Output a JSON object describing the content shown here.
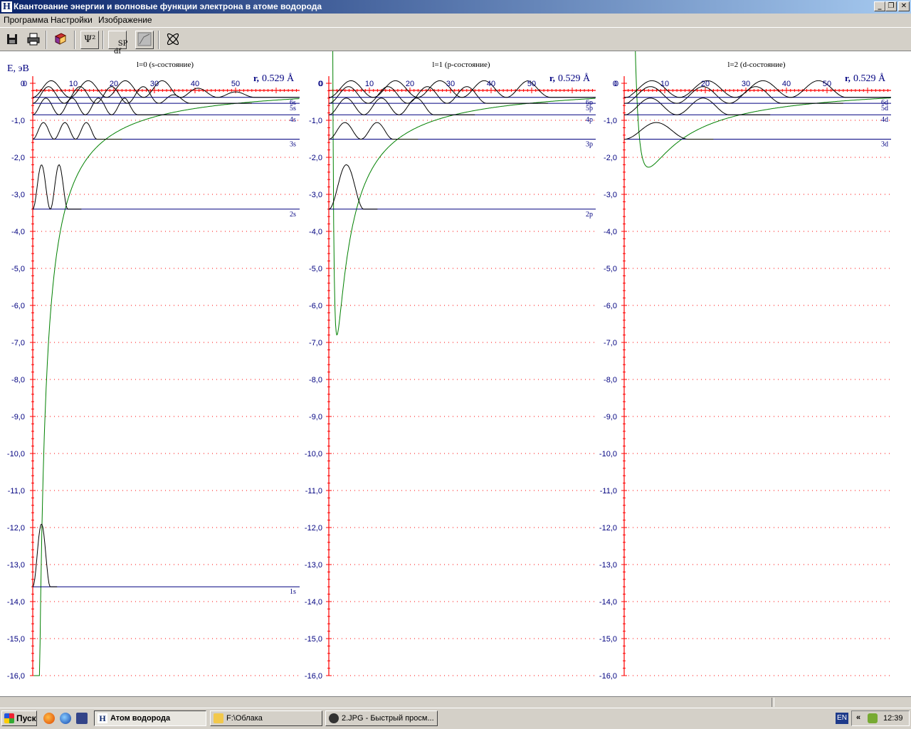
{
  "window": {
    "icon_letter": "H",
    "title": "Квантование энергии и волновые функции электрона в атоме водорода",
    "buttons": {
      "minimize": "_",
      "restore": "❐",
      "close": "✕"
    }
  },
  "menu": [
    "Программа",
    "Настройки",
    "Изображение"
  ],
  "toolbar": {
    "psi_label": "Ψ²",
    "spdf_label": "SP\ndf",
    "icons": [
      "save-icon",
      "print-icon",
      "book-icon",
      "psi-squared-icon",
      "spdf-icon",
      "chart-frame-icon",
      "orbital-icon"
    ]
  },
  "plot": {
    "y_axis_title": "E, эВ",
    "y_ticks": [
      "0",
      "-1,0",
      "-2,0",
      "-3,0",
      "-4,0",
      "-5,0",
      "-6,0",
      "-7,0",
      "-8,0",
      "-9,0",
      "-10,0",
      "-11,0",
      "-12,0",
      "-13,0",
      "-14,0",
      "-15,0",
      "-16,0"
    ],
    "x_ticks": [
      "10",
      "20",
      "30",
      "40",
      "50"
    ],
    "x_unit_prefix": "r,",
    "x_unit_value": "0.529 Å",
    "panels": [
      {
        "title": "l=0 (s-состояние)",
        "levels": [
          "1s",
          "2s",
          "3s",
          "4s",
          "5s",
          "6s"
        ]
      },
      {
        "title": "l=1 (p-состояние)",
        "levels": [
          "2p",
          "3p",
          "4p",
          "5p",
          "6p"
        ]
      },
      {
        "title": "l=2 (d-состояние)",
        "levels": [
          "3d",
          "4d",
          "5d",
          "6d"
        ]
      }
    ],
    "colors": {
      "axis": "#ff0000",
      "grid": "#ff0000",
      "label": "#000080",
      "potential": "#008000",
      "wave": "#000000",
      "level": "#000080"
    }
  },
  "chart_data": [
    {
      "type": "line",
      "title": "l=0 (s-состояние)",
      "ylabel": "E, эВ",
      "xlabel": "r, 0.529 Å",
      "xlim": [
        0,
        65
      ],
      "ylim": [
        -16,
        0
      ],
      "energy_levels": [
        {
          "name": "1s",
          "E": -13.6
        },
        {
          "name": "2s",
          "E": -3.4
        },
        {
          "name": "3s",
          "E": -1.51
        },
        {
          "name": "4s",
          "E": -0.85
        },
        {
          "name": "5s",
          "E": -0.54
        },
        {
          "name": "6s",
          "E": -0.38
        }
      ],
      "grid": true
    },
    {
      "type": "line",
      "title": "l=1 (p-состояние)",
      "ylabel": "E, эВ",
      "xlabel": "r, 0.529 Å",
      "xlim": [
        0,
        65
      ],
      "ylim": [
        -16,
        0
      ],
      "energy_levels": [
        {
          "name": "2p",
          "E": -3.4
        },
        {
          "name": "3p",
          "E": -1.51
        },
        {
          "name": "4p",
          "E": -0.85
        },
        {
          "name": "5p",
          "E": -0.54
        },
        {
          "name": "6p",
          "E": -0.38
        }
      ],
      "grid": true
    },
    {
      "type": "line",
      "title": "l=2 (d-состояние)",
      "ylabel": "E, эВ",
      "xlabel": "r, 0.529 Å",
      "xlim": [
        0,
        65
      ],
      "ylim": [
        -16,
        0
      ],
      "energy_levels": [
        {
          "name": "3d",
          "E": -1.51
        },
        {
          "name": "4d",
          "E": -0.85
        },
        {
          "name": "5d",
          "E": -0.54
        },
        {
          "name": "6d",
          "E": -0.38
        }
      ],
      "grid": true
    }
  ],
  "taskbar": {
    "start": "Пуск",
    "tasks": [
      "Атом водорода",
      "F:\\Облака",
      "2.JPG - Быстрый просм..."
    ],
    "lang": "EN",
    "tray_arrow": "«",
    "clock": "12:39"
  }
}
